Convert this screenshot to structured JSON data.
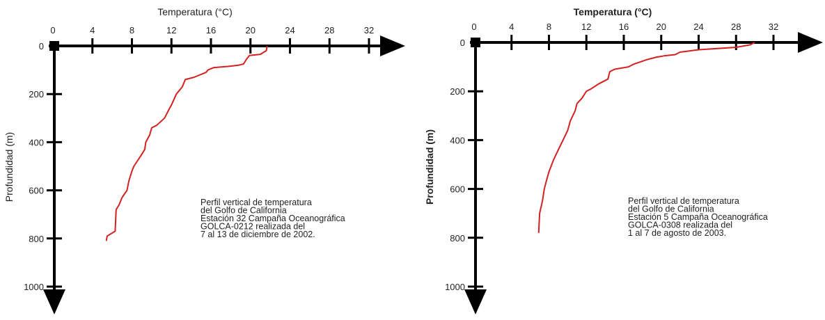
{
  "chart_data": [
    {
      "type": "line",
      "xlabel": "Temperatura (°C)",
      "ylabel": "Profundidad (m)",
      "x_ticks": [
        "0",
        "4",
        "8",
        "12",
        "16",
        "20",
        "24",
        "28",
        "32"
      ],
      "y_ticks": [
        "0",
        "200",
        "400",
        "600",
        "800",
        "1000"
      ],
      "xlim": [
        0,
        34
      ],
      "ylim": [
        0,
        1000
      ],
      "y_inverted": true,
      "x_axis_position": "top",
      "grid": false,
      "line_color": "#d42020",
      "annotation": [
        "Perfil vertical de temperatura",
        "del Golfo de California",
        "Estación 32 Campaña Oceanográfica",
        "GOLCA-0212 realizada del",
        "7 al 13 de diciembre de 2002."
      ],
      "series": [
        {
          "x": [
            21.7,
            21.6,
            21.0,
            19.9,
            19.6,
            19.3,
            18.8,
            17.8,
            16.3,
            15.7,
            15.5,
            14.3,
            13.4,
            13.1,
            12.5,
            12.0,
            11.8,
            11.3,
            10.5,
            10.0,
            9.8,
            9.4,
            9.3,
            9.0,
            8.2,
            8.0,
            7.7,
            7.5,
            7.0,
            6.7,
            6.4,
            6.3,
            5.5,
            5.4
          ],
          "y": [
            0,
            20,
            35,
            40,
            55,
            75,
            80,
            85,
            90,
            100,
            110,
            130,
            140,
            170,
            200,
            245,
            260,
            300,
            330,
            340,
            370,
            400,
            430,
            450,
            500,
            520,
            560,
            600,
            630,
            660,
            680,
            770,
            790,
            810
          ]
        }
      ]
    },
    {
      "type": "line",
      "xlabel": "Temperatura (°C)",
      "ylabel": "Profundidad (m)",
      "x_ticks": [
        "0",
        "4",
        "8",
        "12",
        "16",
        "20",
        "24",
        "28",
        "32"
      ],
      "y_ticks": [
        "0",
        "200",
        "400",
        "600",
        "800",
        "1000"
      ],
      "xlim": [
        0,
        34
      ],
      "ylim": [
        0,
        1000
      ],
      "y_inverted": true,
      "x_axis_position": "top",
      "grid": false,
      "line_color": "#d42020",
      "annotation": [
        "Perfil vertical de temperatura",
        "del Golfo de California",
        "Estación 5 Campaña Oceanográfica",
        "GOLCA-0308 realizada del",
        "1 al 7 de agosto de 2003."
      ],
      "series": [
        {
          "x": [
            30.0,
            29.5,
            28.0,
            24.0,
            22.0,
            21.5,
            20.3,
            19.5,
            18.5,
            17.0,
            16.5,
            15.0,
            14.5,
            14.3,
            13.3,
            12.5,
            12.0,
            11.5,
            11.0,
            10.8,
            10.3,
            10.0,
            9.5,
            9.0,
            8.5,
            8.0,
            7.7,
            7.5,
            7.3,
            7.0,
            6.9
          ],
          "y": [
            0,
            10,
            20,
            30,
            40,
            50,
            55,
            60,
            70,
            90,
            100,
            110,
            120,
            150,
            170,
            190,
            200,
            230,
            250,
            280,
            320,
            360,
            400,
            440,
            480,
            530,
            570,
            600,
            650,
            700,
            780
          ]
        }
      ]
    }
  ]
}
